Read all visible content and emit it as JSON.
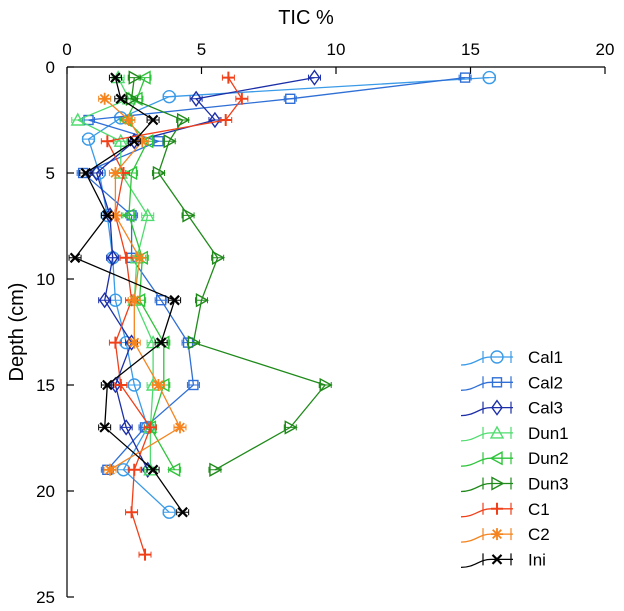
{
  "chart_data": {
    "type": "scatter",
    "title": "",
    "xlabel": "TIC %",
    "ylabel": "Depth (cm)",
    "xlim": [
      0,
      20
    ],
    "ylim": [
      0,
      25
    ],
    "x_ticks": [
      "0",
      "5",
      "10",
      "15",
      "20"
    ],
    "y_ticks": [
      "0",
      "5",
      "10",
      "15",
      "20",
      "25"
    ],
    "x_tick_values": [
      0,
      5,
      10,
      15,
      20
    ],
    "y_tick_values": [
      0,
      5,
      10,
      15,
      20,
      25
    ],
    "legend_position": "right",
    "series": [
      {
        "name": "Cal1",
        "color": "#3a9be8",
        "marker": "circle",
        "points": [
          [
            15.7,
            0.5
          ],
          [
            3.8,
            1.4
          ],
          [
            2.0,
            2.4
          ],
          [
            0.8,
            3.4
          ],
          [
            1.2,
            5.0
          ],
          [
            1.5,
            7.0
          ],
          [
            1.7,
            9.0
          ],
          [
            1.8,
            11.0
          ],
          [
            2.2,
            13.0
          ],
          [
            2.5,
            15.0
          ],
          [
            3.0,
            17.0
          ],
          [
            2.1,
            19.0
          ],
          [
            3.8,
            21.0
          ]
        ]
      },
      {
        "name": "Cal2",
        "color": "#2f6fd6",
        "marker": "square",
        "points": [
          [
            14.8,
            0.5
          ],
          [
            8.3,
            1.5
          ],
          [
            0.8,
            2.5
          ],
          [
            3.4,
            3.5
          ],
          [
            0.6,
            5.0
          ],
          [
            2.4,
            7.0
          ],
          [
            2.4,
            9.0
          ],
          [
            3.5,
            11.0
          ],
          [
            4.5,
            13.0
          ],
          [
            4.7,
            15.0
          ],
          [
            2.9,
            17.0
          ],
          [
            1.5,
            19.0
          ]
        ]
      },
      {
        "name": "Cal3",
        "color": "#1c2fa8",
        "marker": "diamond",
        "points": [
          [
            9.2,
            0.5
          ],
          [
            4.8,
            1.5
          ],
          [
            5.5,
            2.5
          ],
          [
            2.5,
            3.5
          ],
          [
            1.1,
            5.0
          ],
          [
            1.6,
            7.0
          ],
          [
            1.7,
            9.0
          ],
          [
            1.4,
            11.0
          ],
          [
            2.4,
            13.0
          ],
          [
            1.8,
            15.0
          ],
          [
            2.2,
            17.0
          ],
          [
            3.0,
            19.0
          ]
        ]
      },
      {
        "name": "Dun1",
        "color": "#4fdc6e",
        "marker": "triangle-up",
        "points": [
          [
            1.9,
            0.5
          ],
          [
            2.3,
            1.5
          ],
          [
            0.4,
            2.5
          ],
          [
            2.0,
            3.5
          ],
          [
            2.0,
            5.0
          ],
          [
            3.0,
            7.0
          ],
          [
            2.6,
            9.0
          ],
          [
            2.5,
            11.0
          ],
          [
            3.2,
            13.0
          ],
          [
            3.2,
            15.0
          ],
          [
            3.1,
            17.0
          ],
          [
            3.1,
            19.0
          ]
        ]
      },
      {
        "name": "Dun2",
        "color": "#2fc43b",
        "marker": "triangle-left",
        "points": [
          [
            2.9,
            0.5
          ],
          [
            2.6,
            1.5
          ],
          [
            2.2,
            2.5
          ],
          [
            3.0,
            3.5
          ],
          [
            2.4,
            5.0
          ],
          [
            2.3,
            7.0
          ],
          [
            2.8,
            9.0
          ],
          [
            2.7,
            11.0
          ],
          [
            3.6,
            13.0
          ],
          [
            3.6,
            15.0
          ],
          [
            3.1,
            17.0
          ],
          [
            4.0,
            19.0
          ]
        ]
      },
      {
        "name": "Dun3",
        "color": "#1f8a1a",
        "marker": "triangle-right",
        "points": [
          [
            2.5,
            0.5
          ],
          [
            2.4,
            1.5
          ],
          [
            4.3,
            2.5
          ],
          [
            3.8,
            3.5
          ],
          [
            3.4,
            5.0
          ],
          [
            4.5,
            7.0
          ],
          [
            5.6,
            9.0
          ],
          [
            5.0,
            11.0
          ],
          [
            4.7,
            13.0
          ],
          [
            9.6,
            15.0
          ],
          [
            8.3,
            17.0
          ],
          [
            5.5,
            19.0
          ]
        ]
      },
      {
        "name": "C1",
        "color": "#f0401a",
        "marker": "plus",
        "points": [
          [
            6.0,
            0.5
          ],
          [
            6.5,
            1.5
          ],
          [
            5.9,
            2.5
          ],
          [
            1.5,
            3.5
          ],
          [
            2.1,
            5.0
          ],
          [
            1.8,
            7.0
          ],
          [
            2.2,
            9.0
          ],
          [
            2.4,
            11.0
          ],
          [
            1.8,
            13.0
          ],
          [
            2.0,
            15.0
          ],
          [
            3.1,
            17.0
          ],
          [
            2.5,
            19.0
          ],
          [
            2.4,
            21.0
          ],
          [
            2.9,
            23.0
          ]
        ]
      },
      {
        "name": "C2",
        "color": "#f5841f",
        "marker": "asterisk",
        "points": [
          [
            1.4,
            1.5
          ],
          [
            2.3,
            2.5
          ],
          [
            2.8,
            3.5
          ],
          [
            1.8,
            5.0
          ],
          [
            1.8,
            7.0
          ],
          [
            2.7,
            9.0
          ],
          [
            2.5,
            11.0
          ],
          [
            2.5,
            13.0
          ],
          [
            3.4,
            15.0
          ],
          [
            4.2,
            17.0
          ],
          [
            1.6,
            19.0
          ]
        ]
      },
      {
        "name": "Ini",
        "color": "#000000",
        "marker": "x",
        "points": [
          [
            1.8,
            0.5
          ],
          [
            2.0,
            1.5
          ],
          [
            3.2,
            2.5
          ],
          [
            2.5,
            3.5
          ],
          [
            0.7,
            5.0
          ],
          [
            1.5,
            7.0
          ],
          [
            0.3,
            9.0
          ],
          [
            4.0,
            11.0
          ],
          [
            3.5,
            13.0
          ],
          [
            1.5,
            15.0
          ],
          [
            1.4,
            17.0
          ],
          [
            3.2,
            19.0
          ],
          [
            4.3,
            21.0
          ]
        ]
      }
    ]
  }
}
